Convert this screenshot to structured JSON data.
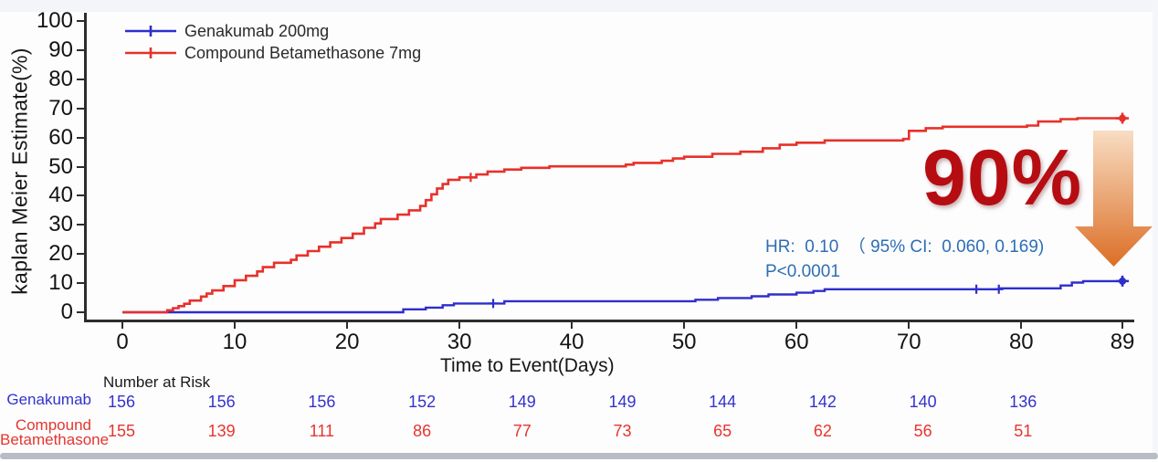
{
  "legend": {
    "items": [
      {
        "label": "Genakumab 200mg",
        "color": "#2e2ecb"
      },
      {
        "label": "Compound Betamethasone 7mg",
        "color": "#e7312a"
      }
    ]
  },
  "y_axis": {
    "label": "kaplan Meier Estimate(%)"
  },
  "x_axis": {
    "label": "Time to Event(Days)"
  },
  "annotations": {
    "hr_line": "HR:  0.10  （ 95% CI:  0.060, 0.169)",
    "p_line": "P<0.0001",
    "reduction": "90%",
    "reduction_color": "#b60d12",
    "arrow_gradient_top": "#f8ddc3",
    "arrow_gradient_bottom": "#dc6e26"
  },
  "risk_table": {
    "title": "Number at Risk",
    "rows": [
      {
        "label_lines": [
          "Genakumab"
        ],
        "color": "#3333cc",
        "values": [
          156,
          156,
          156,
          152,
          149,
          149,
          144,
          142,
          140,
          136
        ]
      },
      {
        "label_lines": [
          "Compound",
          "Betamethasone"
        ],
        "color": "#e6352e",
        "values": [
          155,
          139,
          111,
          86,
          77,
          73,
          65,
          62,
          56,
          51
        ]
      }
    ]
  },
  "chart_data": {
    "type": "line",
    "subtype": "kaplan-meier-step",
    "title": "",
    "xlabel": "Time to Event(Days)",
    "ylabel": "kaplan Meier Estimate(%)",
    "xlim": [
      0,
      89
    ],
    "ylim": [
      0,
      100
    ],
    "x_ticks": [
      0,
      10,
      20,
      30,
      40,
      50,
      60,
      70,
      80,
      89
    ],
    "y_ticks": [
      0,
      10,
      20,
      30,
      40,
      50,
      60,
      70,
      80,
      90,
      100
    ],
    "grid": false,
    "legend_position": "top-left",
    "series": [
      {
        "name": "Genakumab 200mg",
        "color": "#2e2ecb",
        "points": [
          [
            0,
            0
          ],
          [
            25,
            0
          ],
          [
            25,
            1
          ],
          [
            27,
            1
          ],
          [
            27,
            1.6
          ],
          [
            28.5,
            1.6
          ],
          [
            28.5,
            2.4
          ],
          [
            29.5,
            2.4
          ],
          [
            29.5,
            3
          ],
          [
            34,
            3
          ],
          [
            34,
            3.8
          ],
          [
            51,
            3.8
          ],
          [
            51,
            4.3
          ],
          [
            53,
            4.3
          ],
          [
            53,
            4.9
          ],
          [
            56,
            4.9
          ],
          [
            56,
            5.5
          ],
          [
            57.5,
            5.5
          ],
          [
            57.5,
            6.1
          ],
          [
            60,
            6.1
          ],
          [
            60,
            6.7
          ],
          [
            61.5,
            6.7
          ],
          [
            61.5,
            7.3
          ],
          [
            62.5,
            7.3
          ],
          [
            62.5,
            7.9
          ],
          [
            78,
            7.9
          ],
          [
            78,
            8.2
          ],
          [
            83.5,
            8.2
          ],
          [
            83.5,
            9.2
          ],
          [
            84.5,
            9.2
          ],
          [
            84.5,
            10.2
          ],
          [
            85.5,
            10.2
          ],
          [
            85.5,
            10.7
          ],
          [
            89,
            10.7
          ]
        ],
        "censor_marks": [
          [
            33,
            3
          ],
          [
            76,
            7.9
          ],
          [
            78,
            7.9
          ]
        ],
        "end_marker": [
          89,
          10.7
        ]
      },
      {
        "name": "Compound Betamethasone 7mg",
        "color": "#e7312a",
        "points": [
          [
            0,
            0
          ],
          [
            4,
            0
          ],
          [
            4,
            0.7
          ],
          [
            4.5,
            0.7
          ],
          [
            4.5,
            1.4
          ],
          [
            5,
            1.4
          ],
          [
            5,
            2.1
          ],
          [
            5.5,
            2.1
          ],
          [
            5.5,
            2.9
          ],
          [
            6,
            2.9
          ],
          [
            6,
            4
          ],
          [
            7,
            4
          ],
          [
            7,
            5.4
          ],
          [
            7.5,
            5.4
          ],
          [
            7.5,
            6.4
          ],
          [
            8,
            6.4
          ],
          [
            8,
            7.5
          ],
          [
            9,
            7.5
          ],
          [
            9,
            9
          ],
          [
            10,
            9
          ],
          [
            10,
            11
          ],
          [
            11,
            11
          ],
          [
            11,
            12.5
          ],
          [
            12,
            12.5
          ],
          [
            12,
            14
          ],
          [
            12.5,
            14
          ],
          [
            12.5,
            15.5
          ],
          [
            13.5,
            15.5
          ],
          [
            13.5,
            17
          ],
          [
            15,
            17
          ],
          [
            15,
            18
          ],
          [
            15.5,
            18
          ],
          [
            15.5,
            19.5
          ],
          [
            16.5,
            19.5
          ],
          [
            16.5,
            21
          ],
          [
            17.5,
            21
          ],
          [
            17.5,
            22.5
          ],
          [
            18.5,
            22.5
          ],
          [
            18.5,
            24
          ],
          [
            19.5,
            24
          ],
          [
            19.5,
            25.5
          ],
          [
            20.5,
            25.5
          ],
          [
            20.5,
            27
          ],
          [
            21.5,
            27
          ],
          [
            21.5,
            29
          ],
          [
            22.5,
            29
          ],
          [
            22.5,
            30.5
          ],
          [
            23,
            30.5
          ],
          [
            23,
            32
          ],
          [
            24.5,
            32
          ],
          [
            24.5,
            33.5
          ],
          [
            25.5,
            33.5
          ],
          [
            25.5,
            35
          ],
          [
            26.5,
            35
          ],
          [
            26.5,
            36.5
          ],
          [
            27,
            36.5
          ],
          [
            27,
            38.5
          ],
          [
            27.5,
            38.5
          ],
          [
            27.5,
            40.5
          ],
          [
            28,
            40.5
          ],
          [
            28,
            42.5
          ],
          [
            28.5,
            42.5
          ],
          [
            28.5,
            44
          ],
          [
            29,
            44
          ],
          [
            29,
            45.5
          ],
          [
            30,
            45.5
          ],
          [
            30,
            46.3
          ],
          [
            31.5,
            46.3
          ],
          [
            31.5,
            47.3
          ],
          [
            32.5,
            47.3
          ],
          [
            32.5,
            48.3
          ],
          [
            34,
            48.3
          ],
          [
            34,
            49
          ],
          [
            35.5,
            49
          ],
          [
            35.5,
            49.6
          ],
          [
            38,
            49.6
          ],
          [
            38,
            50.1
          ],
          [
            44.8,
            50.1
          ],
          [
            44.8,
            50.7
          ],
          [
            45.5,
            50.7
          ],
          [
            45.5,
            51.3
          ],
          [
            48,
            51.3
          ],
          [
            48,
            52
          ],
          [
            49,
            52
          ],
          [
            49,
            52.8
          ],
          [
            50,
            52.8
          ],
          [
            50,
            53.4
          ],
          [
            52.5,
            53.4
          ],
          [
            52.5,
            54.4
          ],
          [
            55,
            54.4
          ],
          [
            55,
            55.1
          ],
          [
            57,
            55.1
          ],
          [
            57,
            56.3
          ],
          [
            58.5,
            56.3
          ],
          [
            58.5,
            57.5
          ],
          [
            60,
            57.5
          ],
          [
            60,
            58.2
          ],
          [
            62.5,
            58.2
          ],
          [
            62.5,
            59
          ],
          [
            69.5,
            59
          ],
          [
            69.5,
            59.5
          ],
          [
            70,
            59.5
          ],
          [
            70,
            62.3
          ],
          [
            71.5,
            62.3
          ],
          [
            71.5,
            63.2
          ],
          [
            73,
            63.2
          ],
          [
            73,
            63.7
          ],
          [
            80.5,
            63.7
          ],
          [
            80.5,
            64.1
          ],
          [
            81.5,
            64.1
          ],
          [
            81.5,
            65.5
          ],
          [
            83.5,
            65.5
          ],
          [
            83.5,
            66.3
          ],
          [
            85,
            66.3
          ],
          [
            85,
            66.6
          ],
          [
            89,
            66.6
          ]
        ],
        "censor_marks": [
          [
            31,
            46.3
          ]
        ],
        "end_marker": [
          89,
          66.6
        ]
      }
    ]
  }
}
